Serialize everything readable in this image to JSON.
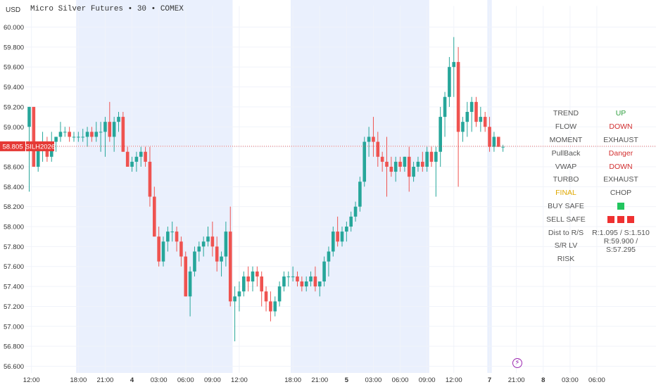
{
  "header": {
    "currency": "USD",
    "title": "Micro Silver Futures • 30 • COMEX"
  },
  "price_marker": {
    "price_label": "58.805",
    "symbol_label": "SILH2026"
  },
  "panel": {
    "rows": [
      {
        "label": "TREND",
        "value": "UP",
        "label_color": "#555555",
        "value_color": "#2e9e3e"
      },
      {
        "label": "FLOW",
        "value": "DOWN",
        "label_color": "#555555",
        "value_color": "#d32f2f"
      },
      {
        "label": "MOMENT",
        "value": "EXHAUST",
        "label_color": "#555555",
        "value_color": "#555555"
      },
      {
        "label": "PullBack",
        "value": "Danger",
        "label_color": "#555555",
        "value_color": "#d32f2f"
      },
      {
        "label": "VWAP",
        "value": "DOWN",
        "label_color": "#555555",
        "value_color": "#d32f2f"
      },
      {
        "label": "TURBO",
        "value": "EXHAUST",
        "label_color": "#555555",
        "value_color": "#555555"
      },
      {
        "label": "FINAL",
        "value": "CHOP",
        "label_color": "#e0a800",
        "value_color": "#555555"
      },
      {
        "label": "BUY SAFE",
        "value": "",
        "label_color": "#555555",
        "squares": [
          "#22c55e"
        ]
      },
      {
        "label": "SELL SAFE",
        "value": "",
        "label_color": "#555555",
        "squares": [
          "#ef3131",
          "#ef3131",
          "#ef3131"
        ]
      },
      {
        "label": "Dist to R/S",
        "value": "R:1.095 / S:1.510",
        "label_color": "#555555",
        "value_color": "#555555"
      },
      {
        "label": "S/R LV",
        "value": "R:59.900 / S:57.295",
        "label_color": "#555555",
        "value_color": "#555555"
      },
      {
        "label": "RISK",
        "value": "",
        "label_color": "#555555",
        "value_color": "#555555"
      }
    ]
  },
  "colors": {
    "up": "#26a69a",
    "down": "#ef5350",
    "session": "#eaf0fd",
    "grid": "#f0f3fa",
    "marker": "#e53935"
  },
  "chart_data": {
    "type": "candlestick",
    "title": "Micro Silver Futures • 30 • COMEX",
    "ylim": [
      56.6,
      60.0
    ],
    "y_ticks": [
      "60.000",
      "59.800",
      "59.600",
      "59.400",
      "59.200",
      "59.000",
      "58.800",
      "58.600",
      "58.400",
      "58.200",
      "58.000",
      "57.800",
      "57.600",
      "57.400",
      "57.200",
      "57.000",
      "56.800",
      "56.600"
    ],
    "x_ticks": [
      {
        "label": "12:00",
        "bar": 0.5
      },
      {
        "label": "18:00",
        "bar": 11
      },
      {
        "label": "21:00",
        "bar": 17
      },
      {
        "label": "4",
        "bar": 23
      },
      {
        "label": "03:00",
        "bar": 29
      },
      {
        "label": "06:00",
        "bar": 35
      },
      {
        "label": "09:00",
        "bar": 41
      },
      {
        "label": "12:00",
        "bar": 47
      },
      {
        "label": "18:00",
        "bar": 59
      },
      {
        "label": "21:00",
        "bar": 65
      },
      {
        "label": "5",
        "bar": 71
      },
      {
        "label": "03:00",
        "bar": 77
      },
      {
        "label": "06:00",
        "bar": 83
      },
      {
        "label": "09:00",
        "bar": 89
      },
      {
        "label": "12:00",
        "bar": 95
      },
      {
        "label": "7",
        "bar": 103
      },
      {
        "label": "21:00",
        "bar": 109
      },
      {
        "label": "8",
        "bar": 115
      },
      {
        "label": "03:00",
        "bar": 121
      },
      {
        "label": "06:00",
        "bar": 127
      }
    ],
    "bold_x_ticks": [
      "4",
      "5",
      "7",
      "8"
    ],
    "session_bands": [
      [
        10.5,
        45.5
      ],
      [
        58.5,
        89.5
      ],
      [
        102.5,
        103.5
      ]
    ],
    "current_price": 58.805,
    "candles": [
      [
        59.0,
        59.2,
        58.35,
        59.2
      ],
      [
        59.2,
        59.2,
        58.6,
        58.6
      ],
      [
        58.6,
        58.85,
        58.55,
        58.8
      ],
      [
        58.8,
        58.95,
        58.65,
        58.85
      ],
      [
        58.85,
        58.9,
        58.65,
        58.7
      ],
      [
        58.7,
        58.95,
        58.65,
        58.85
      ],
      [
        58.85,
        58.9,
        58.75,
        58.9
      ],
      [
        58.9,
        59.05,
        58.85,
        58.95
      ],
      [
        58.95,
        59.0,
        58.9,
        58.95
      ],
      [
        58.95,
        59.0,
        58.85,
        58.9
      ],
      [
        58.9,
        58.95,
        58.85,
        58.9
      ],
      [
        58.9,
        58.95,
        58.85,
        58.9
      ],
      [
        58.9,
        58.98,
        58.85,
        58.9
      ],
      [
        58.9,
        59.0,
        58.8,
        58.95
      ],
      [
        58.95,
        59.0,
        58.85,
        58.9
      ],
      [
        58.9,
        59.05,
        58.85,
        58.95
      ],
      [
        58.95,
        59.05,
        58.75,
        58.95
      ],
      [
        58.95,
        59.1,
        58.7,
        59.05
      ],
      [
        59.05,
        59.25,
        58.85,
        58.9
      ],
      [
        58.9,
        59.1,
        58.75,
        59.05
      ],
      [
        59.05,
        59.15,
        58.95,
        59.1
      ],
      [
        59.1,
        59.15,
        58.75,
        58.75
      ],
      [
        58.75,
        58.8,
        58.6,
        58.6
      ],
      [
        58.6,
        58.7,
        58.55,
        58.65
      ],
      [
        58.65,
        58.75,
        58.55,
        58.7
      ],
      [
        58.7,
        58.8,
        58.6,
        58.75
      ],
      [
        58.75,
        58.8,
        58.6,
        58.65
      ],
      [
        58.65,
        58.8,
        58.2,
        58.3
      ],
      [
        58.3,
        58.4,
        57.9,
        57.9
      ],
      [
        57.9,
        58.0,
        57.6,
        57.65
      ],
      [
        57.65,
        57.9,
        57.6,
        57.85
      ],
      [
        57.85,
        58.0,
        57.75,
        57.95
      ],
      [
        57.95,
        58.05,
        57.85,
        57.95
      ],
      [
        57.95,
        58.0,
        57.75,
        57.85
      ],
      [
        57.85,
        57.9,
        57.6,
        57.7
      ],
      [
        57.7,
        57.75,
        57.3,
        57.3
      ],
      [
        57.3,
        57.6,
        57.1,
        57.55
      ],
      [
        57.55,
        57.8,
        57.5,
        57.75
      ],
      [
        57.75,
        57.85,
        57.65,
        57.8
      ],
      [
        57.8,
        57.9,
        57.7,
        57.85
      ],
      [
        57.85,
        58.0,
        57.8,
        57.9
      ],
      [
        57.9,
        58.05,
        57.7,
        57.8
      ],
      [
        57.8,
        57.9,
        57.55,
        57.65
      ],
      [
        57.65,
        57.75,
        57.5,
        57.7
      ],
      [
        57.7,
        58.05,
        57.6,
        57.95
      ],
      [
        57.95,
        58.2,
        57.2,
        57.25
      ],
      [
        57.25,
        57.4,
        56.85,
        57.3
      ],
      [
        57.3,
        57.45,
        57.15,
        57.35
      ],
      [
        57.35,
        57.55,
        57.3,
        57.5
      ],
      [
        57.5,
        57.6,
        57.35,
        57.45
      ],
      [
        57.45,
        57.6,
        57.35,
        57.55
      ],
      [
        57.55,
        57.6,
        57.4,
        57.5
      ],
      [
        57.5,
        57.55,
        57.2,
        57.35
      ],
      [
        57.35,
        57.4,
        57.15,
        57.25
      ],
      [
        57.25,
        57.35,
        57.05,
        57.15
      ],
      [
        57.15,
        57.3,
        57.1,
        57.25
      ],
      [
        57.25,
        57.45,
        57.2,
        57.4
      ],
      [
        57.4,
        57.55,
        57.35,
        57.5
      ],
      [
        57.5,
        57.55,
        57.4,
        57.5
      ],
      [
        57.5,
        57.6,
        57.45,
        57.5
      ],
      [
        57.5,
        57.55,
        57.4,
        57.45
      ],
      [
        57.45,
        57.5,
        57.35,
        57.4
      ],
      [
        57.4,
        57.5,
        57.35,
        57.45
      ],
      [
        57.45,
        57.55,
        57.4,
        57.5
      ],
      [
        57.5,
        57.6,
        57.35,
        57.4
      ],
      [
        57.4,
        57.45,
        57.3,
        57.45
      ],
      [
        57.45,
        57.7,
        57.4,
        57.65
      ],
      [
        57.65,
        57.8,
        57.5,
        57.75
      ],
      [
        57.75,
        58.0,
        57.7,
        57.95
      ],
      [
        57.95,
        58.1,
        57.8,
        57.85
      ],
      [
        57.85,
        58.0,
        57.8,
        57.95
      ],
      [
        57.95,
        58.05,
        57.85,
        58.0
      ],
      [
        58.0,
        58.15,
        57.95,
        58.1
      ],
      [
        58.1,
        58.25,
        58.05,
        58.2
      ],
      [
        58.2,
        58.5,
        58.15,
        58.45
      ],
      [
        58.45,
        58.9,
        58.4,
        58.85
      ],
      [
        58.85,
        59.0,
        58.7,
        58.9
      ],
      [
        58.9,
        59.1,
        58.7,
        58.85
      ],
      [
        58.85,
        58.95,
        58.6,
        58.7
      ],
      [
        58.7,
        58.75,
        58.55,
        58.65
      ],
      [
        58.65,
        58.9,
        58.3,
        58.6
      ],
      [
        58.6,
        58.7,
        58.5,
        58.55
      ],
      [
        58.55,
        58.7,
        58.45,
        58.65
      ],
      [
        58.65,
        58.7,
        58.55,
        58.6
      ],
      [
        58.6,
        58.7,
        58.55,
        58.7
      ],
      [
        58.7,
        58.8,
        58.35,
        58.5
      ],
      [
        58.5,
        58.65,
        58.45,
        58.6
      ],
      [
        58.6,
        58.7,
        58.55,
        58.65
      ],
      [
        58.65,
        58.75,
        58.55,
        58.6
      ],
      [
        58.6,
        58.8,
        58.55,
        58.75
      ],
      [
        58.75,
        58.8,
        58.6,
        58.65
      ],
      [
        58.65,
        58.8,
        58.3,
        58.75
      ],
      [
        58.75,
        59.2,
        58.6,
        59.1
      ],
      [
        59.1,
        59.35,
        58.9,
        59.3
      ],
      [
        59.3,
        59.7,
        59.2,
        59.6
      ],
      [
        59.6,
        59.9,
        59.3,
        59.65
      ],
      [
        59.65,
        59.8,
        58.4,
        58.95
      ],
      [
        58.95,
        59.1,
        58.85,
        59.05
      ],
      [
        59.05,
        59.25,
        58.9,
        59.15
      ],
      [
        59.15,
        59.3,
        58.95,
        59.25
      ],
      [
        59.25,
        59.3,
        59.0,
        59.05
      ],
      [
        59.05,
        59.2,
        58.95,
        59.1
      ],
      [
        59.1,
        59.15,
        58.95,
        59.0
      ],
      [
        59.0,
        59.1,
        58.75,
        58.8
      ],
      [
        58.8,
        58.95,
        58.75,
        58.9
      ],
      [
        58.9,
        58.9,
        58.8,
        58.8
      ],
      [
        58.8,
        58.82,
        58.75,
        58.8
      ]
    ]
  }
}
